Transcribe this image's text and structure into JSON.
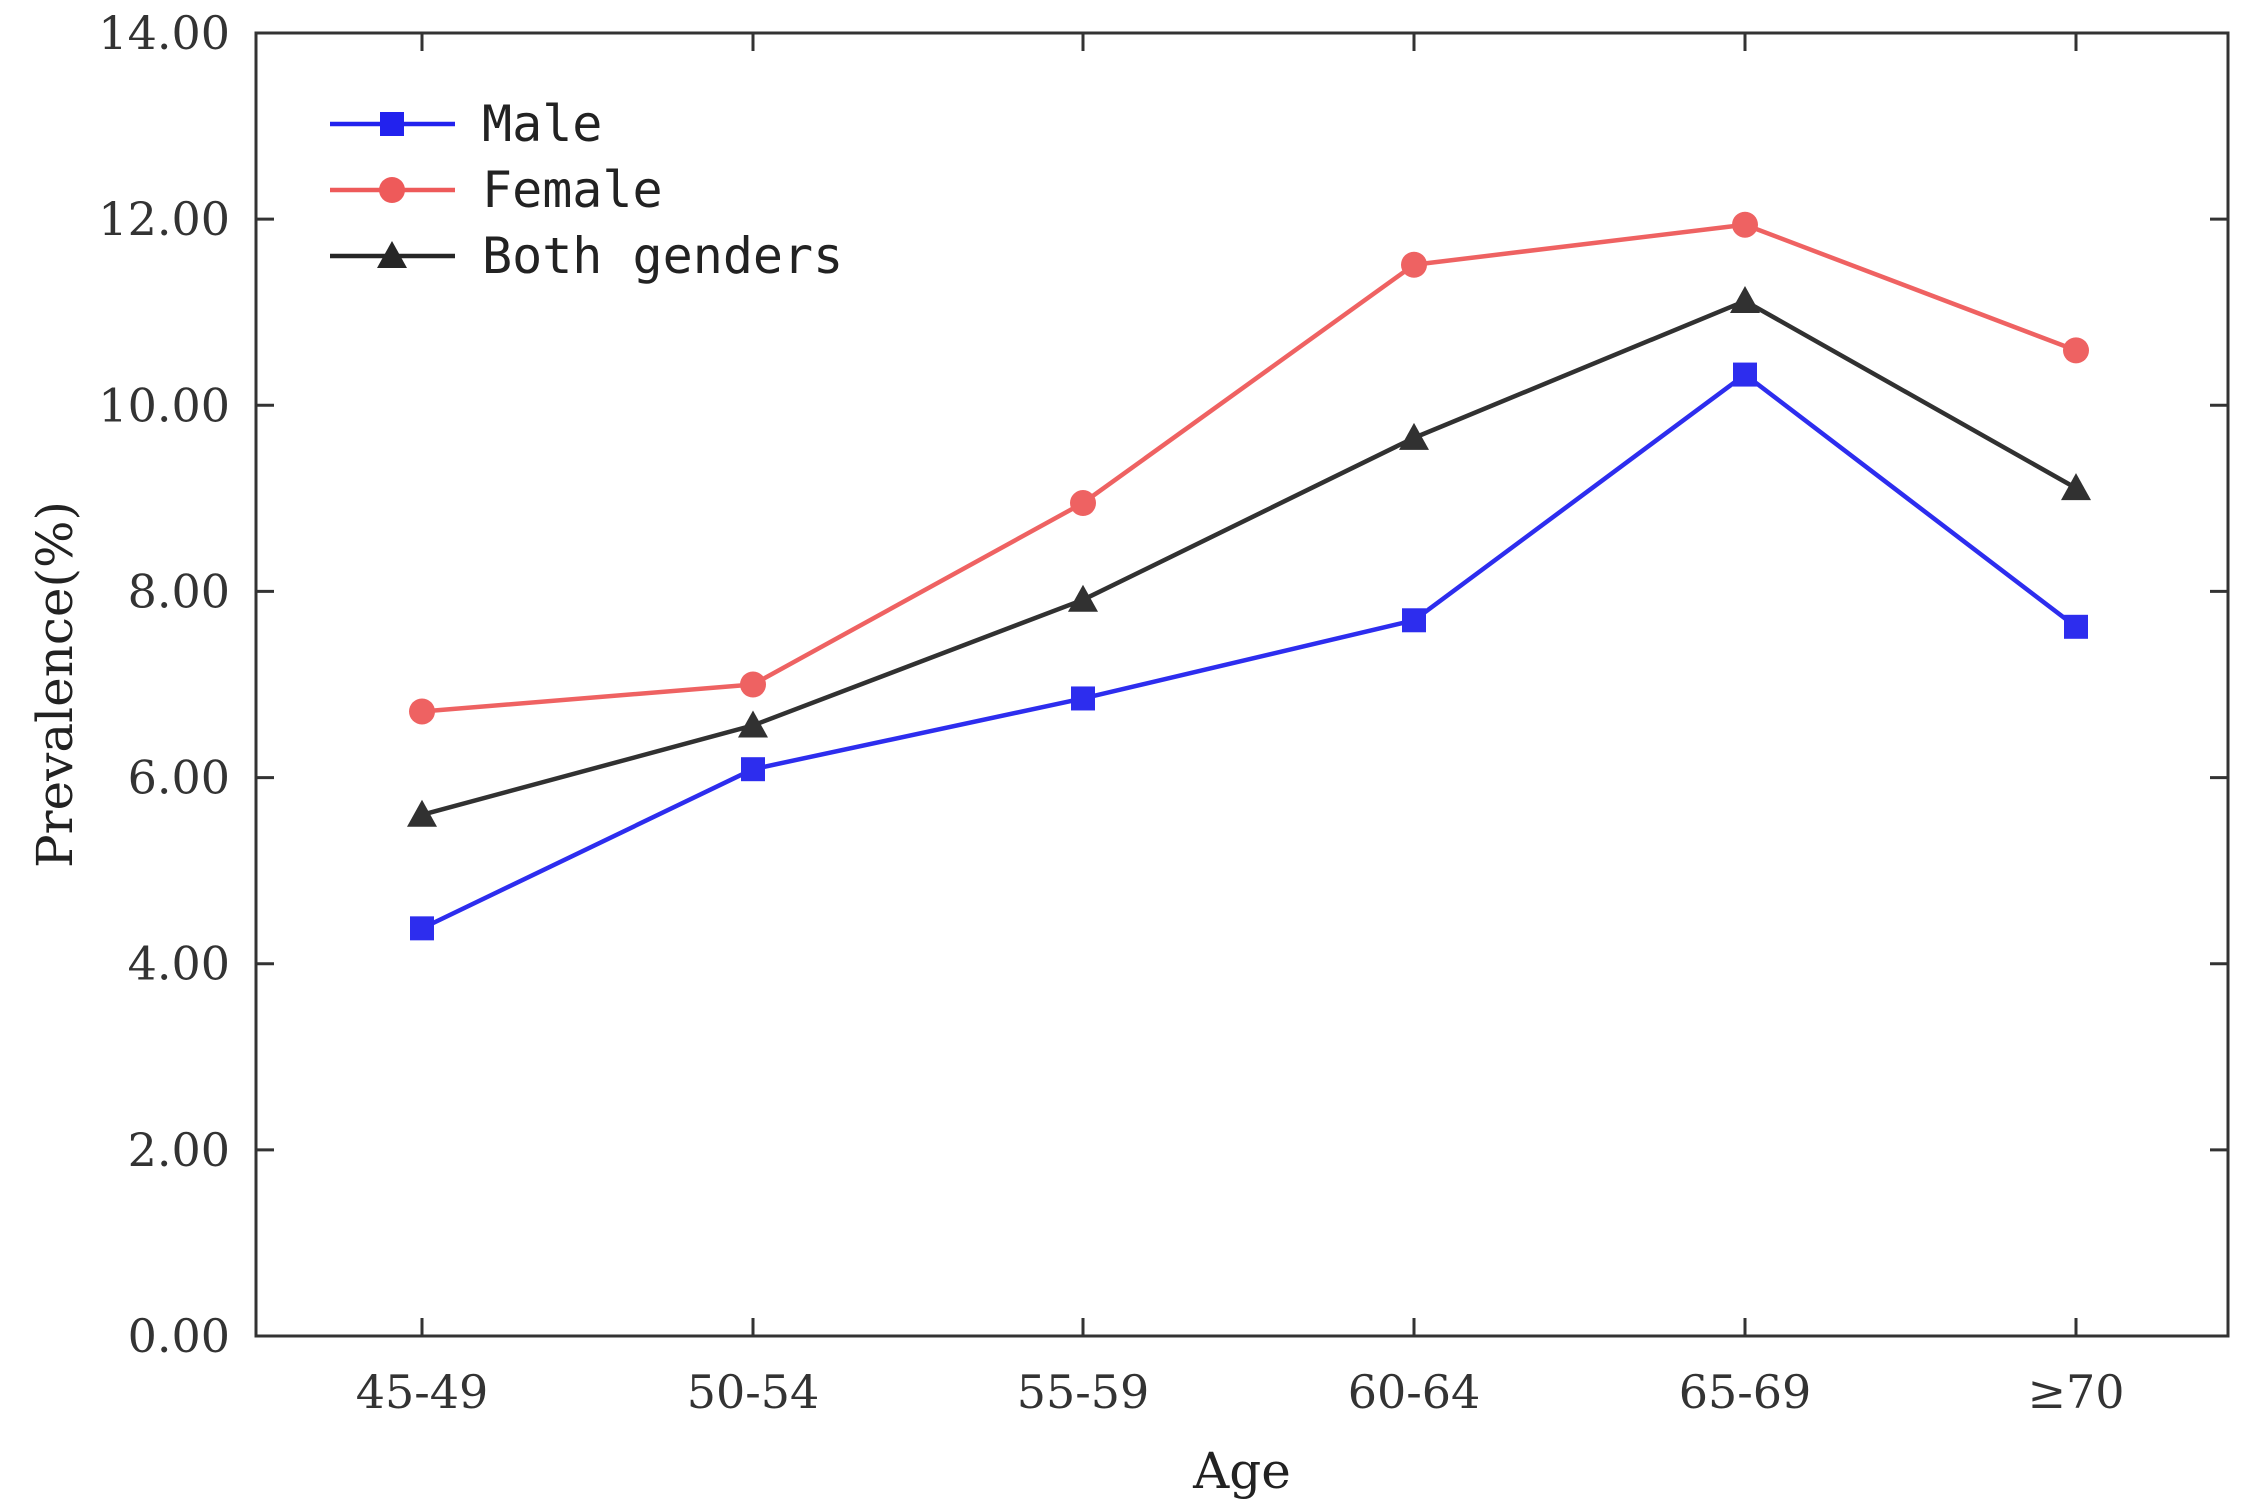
{
  "chart_data": {
    "type": "line",
    "title": "",
    "xlabel": "Age",
    "ylabel": "Prevalence(%)",
    "categories": [
      "45-49",
      "50-54",
      "55-59",
      "60-64",
      "65-69",
      "≥70"
    ],
    "ylim": [
      0,
      14
    ],
    "yticks": [
      0,
      2,
      4,
      6,
      8,
      10,
      12,
      14
    ],
    "ytick_labels": [
      "0.00",
      "2.00",
      "4.00",
      "6.00",
      "8.00",
      "10.00",
      "12.00",
      "14.00"
    ],
    "grid": false,
    "legend_position": "top-left",
    "series": [
      {
        "name": "Male",
        "color": "#2222ee",
        "marker": "square",
        "values": [
          4.38,
          6.09,
          6.85,
          7.69,
          10.33,
          7.62
        ]
      },
      {
        "name": "Female",
        "color": "#ee5a5a",
        "marker": "circle",
        "values": [
          6.71,
          7.0,
          8.95,
          11.51,
          11.94,
          10.59
        ]
      },
      {
        "name": "Both genders",
        "color": "#262626",
        "marker": "triangle",
        "values": [
          5.6,
          6.56,
          7.91,
          9.65,
          11.12,
          9.11
        ]
      }
    ]
  }
}
